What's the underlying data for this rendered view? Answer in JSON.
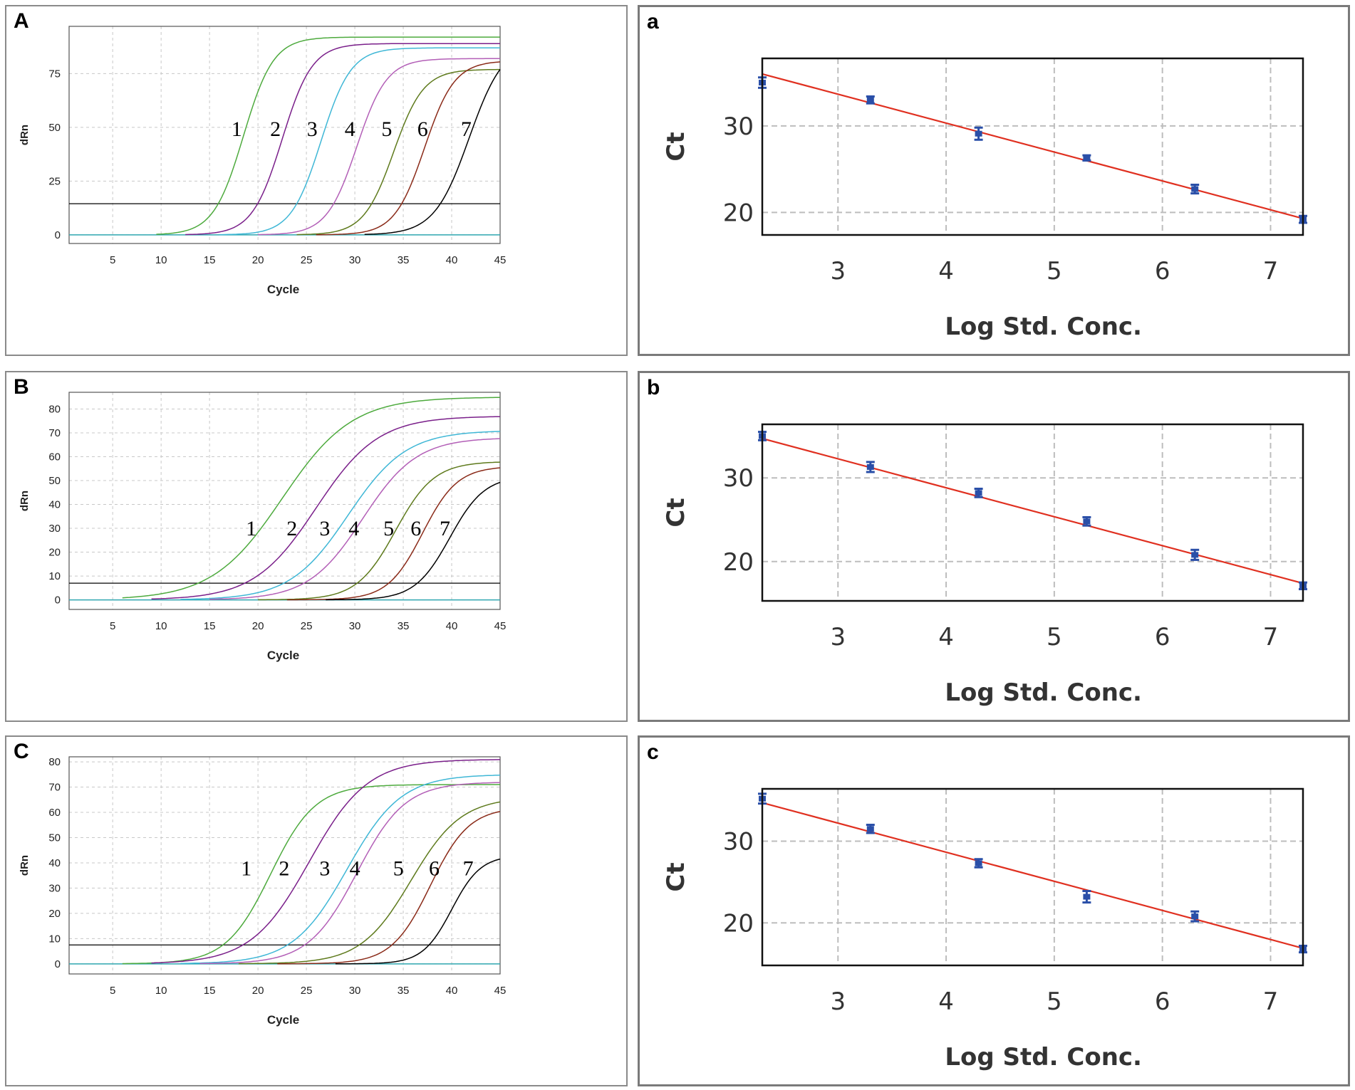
{
  "chart_data": [
    {
      "type": "line",
      "panel_label": "A",
      "title": "",
      "xlabel": "Cycle",
      "ylabel": "dRn",
      "xlim": [
        0.5,
        45
      ],
      "ylim": [
        -4,
        97
      ],
      "xticks": [
        5,
        10,
        15,
        20,
        25,
        30,
        35,
        40,
        45
      ],
      "yticks": [
        0,
        25,
        50,
        75
      ],
      "grid": true,
      "threshold": 14.5,
      "baseline_color": "#2fa7b0",
      "label_y": 46,
      "series": [
        {
          "name": "1",
          "color": "#4daa3d",
          "plateau": 92,
          "midpoint": 18.5,
          "slope": 1.55,
          "label_x": 17.8,
          "start": 9.5
        },
        {
          "name": "2",
          "color": "#7a1f8a",
          "plateau": 89,
          "midpoint": 22.5,
          "slope": 1.55,
          "label_x": 21.8,
          "start": 12.5
        },
        {
          "name": "3",
          "color": "#3fb7d6",
          "plateau": 87,
          "midpoint": 26.5,
          "slope": 1.55,
          "label_x": 25.6,
          "start": 16
        },
        {
          "name": "4",
          "color": "#b35fb7",
          "plateau": 82,
          "midpoint": 30.2,
          "slope": 1.55,
          "label_x": 29.5,
          "start": 20
        },
        {
          "name": "5",
          "color": "#5e7a1c",
          "plateau": 77,
          "midpoint": 34.0,
          "slope": 1.55,
          "label_x": 33.3,
          "start": 24
        },
        {
          "name": "6",
          "color": "#8a2a18",
          "plateau": 81,
          "midpoint": 37.2,
          "slope": 1.55,
          "label_x": 37.0,
          "start": 26
        },
        {
          "name": "7",
          "color": "#000000",
          "plateau": 90,
          "midpoint": 41.8,
          "slope": 1.8,
          "label_x": 41.5,
          "start": 31
        }
      ],
      "label_font_size": 30
    },
    {
      "type": "line",
      "panel_label": "B",
      "title": "",
      "xlabel": "Cycle",
      "ylabel": "dRn",
      "xlim": [
        0.5,
        45
      ],
      "ylim": [
        -4,
        87
      ],
      "xticks": [
        5,
        10,
        15,
        20,
        25,
        30,
        35,
        40,
        45
      ],
      "yticks": [
        0,
        10,
        20,
        30,
        40,
        50,
        60,
        70,
        80
      ],
      "grid": true,
      "threshold": 7,
      "baseline_color": "#2fa7b0",
      "label_y": 27,
      "series": [
        {
          "name": "1",
          "color": "#4daa3d",
          "plateau": 85,
          "midpoint": 22.5,
          "slope": 3.6,
          "label_x": 19.3,
          "start": 6
        },
        {
          "name": "2",
          "color": "#7a1f8a",
          "plateau": 77,
          "midpoint": 26.0,
          "slope": 3.2,
          "label_x": 23.5,
          "start": 9
        },
        {
          "name": "3",
          "color": "#3fb7d6",
          "plateau": 71,
          "midpoint": 29.3,
          "slope": 3.0,
          "label_x": 26.9,
          "start": 12
        },
        {
          "name": "4",
          "color": "#b35fb7",
          "plateau": 68,
          "midpoint": 30.8,
          "slope": 2.8,
          "label_x": 29.9,
          "start": 15
        },
        {
          "name": "5",
          "color": "#5e7a1c",
          "plateau": 58,
          "midpoint": 34.2,
          "slope": 2.0,
          "label_x": 33.5,
          "start": 20
        },
        {
          "name": "6",
          "color": "#8a2a18",
          "plateau": 56,
          "midpoint": 37.0,
          "slope": 1.8,
          "label_x": 36.3,
          "start": 23
        },
        {
          "name": "7",
          "color": "#000000",
          "plateau": 52,
          "midpoint": 39.8,
          "slope": 1.8,
          "label_x": 39.3,
          "start": 27
        }
      ],
      "label_font_size": 30
    },
    {
      "type": "line",
      "panel_label": "C",
      "title": "",
      "xlabel": "Cycle",
      "ylabel": "dRn",
      "xlim": [
        0.5,
        45
      ],
      "ylim": [
        -4,
        82
      ],
      "xticks": [
        5,
        10,
        15,
        20,
        25,
        30,
        35,
        40,
        45
      ],
      "yticks": [
        0,
        10,
        20,
        30,
        40,
        50,
        60,
        70,
        80
      ],
      "grid": true,
      "threshold": 7.5,
      "baseline_color": "#2fa7b0",
      "label_y": 35,
      "series": [
        {
          "name": "1",
          "color": "#4daa3d",
          "plateau": 71,
          "midpoint": 21.3,
          "slope": 2.3,
          "label_x": 18.8,
          "start": 6
        },
        {
          "name": "2",
          "color": "#7a1f8a",
          "plateau": 81,
          "midpoint": 25.3,
          "slope": 3.0,
          "label_x": 22.7,
          "start": 9
        },
        {
          "name": "3",
          "color": "#3fb7d6",
          "plateau": 75,
          "midpoint": 29.2,
          "slope": 2.8,
          "label_x": 26.9,
          "start": 12
        },
        {
          "name": "4",
          "color": "#b35fb7",
          "plateau": 72,
          "midpoint": 30.2,
          "slope": 2.5,
          "label_x": 30.0,
          "start": 14
        },
        {
          "name": "5",
          "color": "#5e7a1c",
          "plateau": 66,
          "midpoint": 35.8,
          "slope": 2.6,
          "label_x": 34.5,
          "start": 18
        },
        {
          "name": "6",
          "color": "#8a2a18",
          "plateau": 62,
          "midpoint": 37.8,
          "slope": 2.0,
          "label_x": 38.2,
          "start": 22
        },
        {
          "name": "7",
          "color": "#000000",
          "plateau": 43,
          "midpoint": 40.0,
          "slope": 1.5,
          "label_x": 41.7,
          "start": 28
        }
      ],
      "label_font_size": 30
    },
    {
      "type": "scatter",
      "panel_label": "a",
      "title": "",
      "xlabel": "Log Std. Conc.",
      "ylabel": "Ct",
      "xlim": [
        2.3,
        7.3
      ],
      "ylim": [
        17.4,
        37.8
      ],
      "xticks": [
        3,
        4,
        5,
        6,
        7
      ],
      "yticks": [
        20,
        30
      ],
      "grid": true,
      "fit_color": "#e03020",
      "point_color": "#2a4fa8",
      "fit": {
        "x": [
          2.3,
          7.3
        ],
        "y": [
          36.0,
          19.3
        ]
      },
      "points": [
        {
          "x": 2.3,
          "y": 35.0,
          "err": 0.6
        },
        {
          "x": 3.3,
          "y": 33.0,
          "err": 0.4
        },
        {
          "x": 4.3,
          "y": 29.1,
          "err": 0.7
        },
        {
          "x": 5.3,
          "y": 26.3,
          "err": 0.3
        },
        {
          "x": 6.3,
          "y": 22.7,
          "err": 0.5
        },
        {
          "x": 7.3,
          "y": 19.2,
          "err": 0.4
        }
      ]
    },
    {
      "type": "scatter",
      "panel_label": "b",
      "title": "",
      "xlabel": "Log Std. Conc.",
      "ylabel": "Ct",
      "xlim": [
        2.3,
        7.3
      ],
      "ylim": [
        15.3,
        36.4
      ],
      "xticks": [
        3,
        4,
        5,
        6,
        7
      ],
      "yticks": [
        20,
        30
      ],
      "grid": true,
      "fit_color": "#e03020",
      "point_color": "#2a4fa8",
      "fit": {
        "x": [
          2.3,
          7.3
        ],
        "y": [
          34.7,
          17.4
        ]
      },
      "points": [
        {
          "x": 2.3,
          "y": 35.0,
          "err": 0.5
        },
        {
          "x": 3.3,
          "y": 31.3,
          "err": 0.6
        },
        {
          "x": 4.3,
          "y": 28.2,
          "err": 0.5
        },
        {
          "x": 5.3,
          "y": 24.8,
          "err": 0.5
        },
        {
          "x": 6.3,
          "y": 20.8,
          "err": 0.6
        },
        {
          "x": 7.3,
          "y": 17.1,
          "err": 0.4
        }
      ]
    },
    {
      "type": "scatter",
      "panel_label": "c",
      "title": "",
      "xlabel": "Log Std. Conc.",
      "ylabel": "Ct",
      "xlim": [
        2.3,
        7.3
      ],
      "ylim": [
        14.8,
        36.4
      ],
      "xticks": [
        3,
        4,
        5,
        6,
        7
      ],
      "yticks": [
        20,
        30
      ],
      "grid": true,
      "fit_color": "#e03020",
      "point_color": "#2a4fa8",
      "fit": {
        "x": [
          2.3,
          7.3
        ],
        "y": [
          34.7,
          16.9
        ]
      },
      "points": [
        {
          "x": 2.3,
          "y": 35.2,
          "err": 0.6
        },
        {
          "x": 3.3,
          "y": 31.5,
          "err": 0.5
        },
        {
          "x": 4.3,
          "y": 27.3,
          "err": 0.5
        },
        {
          "x": 5.3,
          "y": 23.2,
          "err": 0.7
        },
        {
          "x": 6.3,
          "y": 20.8,
          "err": 0.6
        },
        {
          "x": 7.3,
          "y": 16.8,
          "err": 0.4
        }
      ]
    }
  ]
}
